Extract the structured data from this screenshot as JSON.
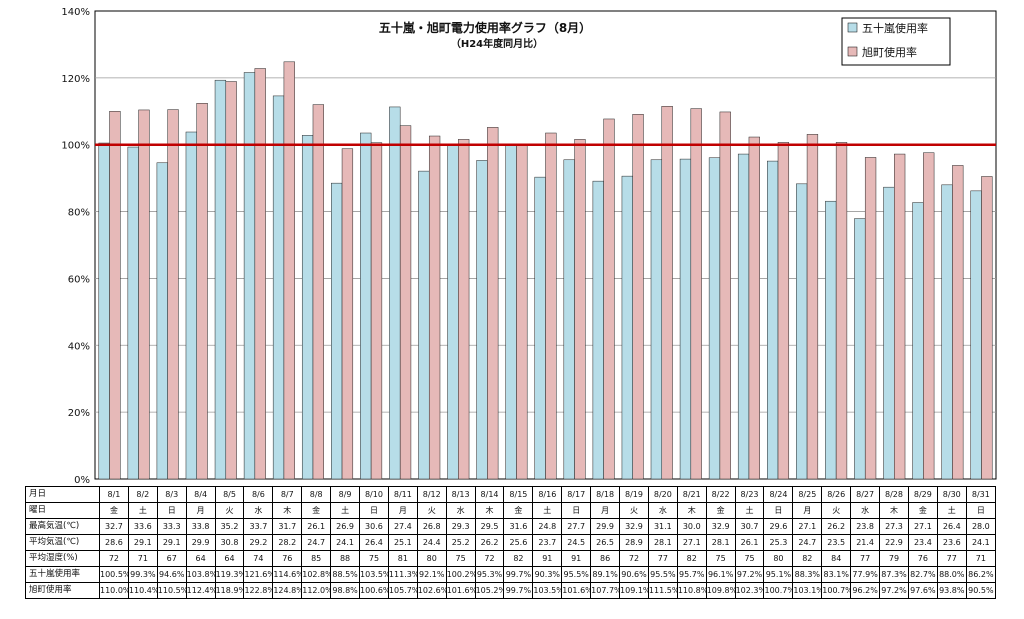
{
  "chart_data": {
    "type": "bar",
    "title": "五十嵐・旭町電力使用率グラフ（8月）",
    "subtitle": "（H24年度同月比）",
    "ylim": [
      0,
      140
    ],
    "yticks": [
      "0%",
      "20%",
      "40%",
      "60%",
      "80%",
      "100%",
      "120%",
      "140%"
    ],
    "grid": true,
    "legend_position": "top-right",
    "reference_line": 100,
    "reference_line_color": "#c00000",
    "categories": [
      "8/1",
      "8/2",
      "8/3",
      "8/4",
      "8/5",
      "8/6",
      "8/7",
      "8/8",
      "8/9",
      "8/10",
      "8/11",
      "8/12",
      "8/13",
      "8/14",
      "8/15",
      "8/16",
      "8/17",
      "8/18",
      "8/19",
      "8/20",
      "8/21",
      "8/22",
      "8/23",
      "8/24",
      "8/25",
      "8/26",
      "8/27",
      "8/28",
      "8/29",
      "8/30",
      "8/31"
    ],
    "series": [
      {
        "name": "五十嵐使用率",
        "color": "#b7dde8",
        "values": [
          100.5,
          99.3,
          94.6,
          103.8,
          119.3,
          121.6,
          114.6,
          102.8,
          88.5,
          103.5,
          111.3,
          92.1,
          100.2,
          95.3,
          99.7,
          90.3,
          95.5,
          89.1,
          90.6,
          95.5,
          95.7,
          96.1,
          97.2,
          95.1,
          88.3,
          83.1,
          77.9,
          87.3,
          82.7,
          88.0,
          86.2
        ]
      },
      {
        "name": "旭町使用率",
        "color": "#e6b9b8",
        "values": [
          110.0,
          110.4,
          110.5,
          112.4,
          118.9,
          122.8,
          124.8,
          112.0,
          98.8,
          100.6,
          105.7,
          102.6,
          101.6,
          105.2,
          99.7,
          103.5,
          101.6,
          107.7,
          109.1,
          111.5,
          110.8,
          109.8,
          102.3,
          100.7,
          103.1,
          100.7,
          96.2,
          97.2,
          97.6,
          93.8,
          90.5
        ]
      }
    ]
  },
  "table": {
    "header": "月日",
    "rows": [
      {
        "label": "曜日",
        "values": [
          "金",
          "土",
          "日",
          "月",
          "火",
          "水",
          "木",
          "金",
          "土",
          "日",
          "月",
          "火",
          "水",
          "木",
          "金",
          "土",
          "日",
          "月",
          "火",
          "水",
          "木",
          "金",
          "土",
          "日",
          "月",
          "火",
          "水",
          "木",
          "金",
          "土",
          "日"
        ]
      },
      {
        "label": "最高気温(℃)",
        "values": [
          "32.7",
          "33.6",
          "33.3",
          "33.8",
          "35.2",
          "33.7",
          "31.7",
          "26.1",
          "26.9",
          "30.6",
          "27.4",
          "26.8",
          "29.3",
          "29.5",
          "31.6",
          "24.8",
          "27.7",
          "29.9",
          "32.9",
          "31.1",
          "30.0",
          "32.9",
          "30.7",
          "29.6",
          "27.1",
          "26.2",
          "23.8",
          "27.3",
          "27.1",
          "26.4",
          "28.0"
        ]
      },
      {
        "label": "平均気温(℃)",
        "values": [
          "28.6",
          "29.1",
          "29.1",
          "29.9",
          "30.8",
          "29.2",
          "28.2",
          "24.7",
          "24.1",
          "26.4",
          "25.1",
          "24.4",
          "25.2",
          "26.2",
          "25.6",
          "23.7",
          "24.5",
          "26.5",
          "28.9",
          "28.1",
          "27.1",
          "28.1",
          "26.1",
          "25.3",
          "24.7",
          "23.5",
          "21.4",
          "22.9",
          "23.4",
          "23.6",
          "24.1"
        ]
      },
      {
        "label": "平均湿度(%)",
        "values": [
          "72",
          "71",
          "67",
          "64",
          "64",
          "74",
          "76",
          "85",
          "88",
          "75",
          "81",
          "80",
          "75",
          "72",
          "82",
          "91",
          "91",
          "86",
          "72",
          "77",
          "82",
          "75",
          "75",
          "80",
          "82",
          "84",
          "77",
          "79",
          "76",
          "77",
          "71"
        ]
      },
      {
        "label": "五十嵐使用率",
        "values": [
          "100.5%",
          "99.3%",
          "94.6%",
          "103.8%",
          "119.3%",
          "121.6%",
          "114.6%",
          "102.8%",
          "88.5%",
          "103.5%",
          "111.3%",
          "92.1%",
          "100.2%",
          "95.3%",
          "99.7%",
          "90.3%",
          "95.5%",
          "89.1%",
          "90.6%",
          "95.5%",
          "95.7%",
          "96.1%",
          "97.2%",
          "95.1%",
          "88.3%",
          "83.1%",
          "77.9%",
          "87.3%",
          "82.7%",
          "88.0%",
          "86.2%"
        ]
      },
      {
        "label": "旭町使用率",
        "values": [
          "110.0%",
          "110.4%",
          "110.5%",
          "112.4%",
          "118.9%",
          "122.8%",
          "124.8%",
          "112.0%",
          "98.8%",
          "100.6%",
          "105.7%",
          "102.6%",
          "101.6%",
          "105.2%",
          "99.7%",
          "103.5%",
          "101.6%",
          "107.7%",
          "109.1%",
          "111.5%",
          "110.8%",
          "109.8%",
          "102.3%",
          "100.7%",
          "103.1%",
          "100.7%",
          "96.2%",
          "97.2%",
          "97.6%",
          "93.8%",
          "90.5%"
        ]
      }
    ]
  }
}
